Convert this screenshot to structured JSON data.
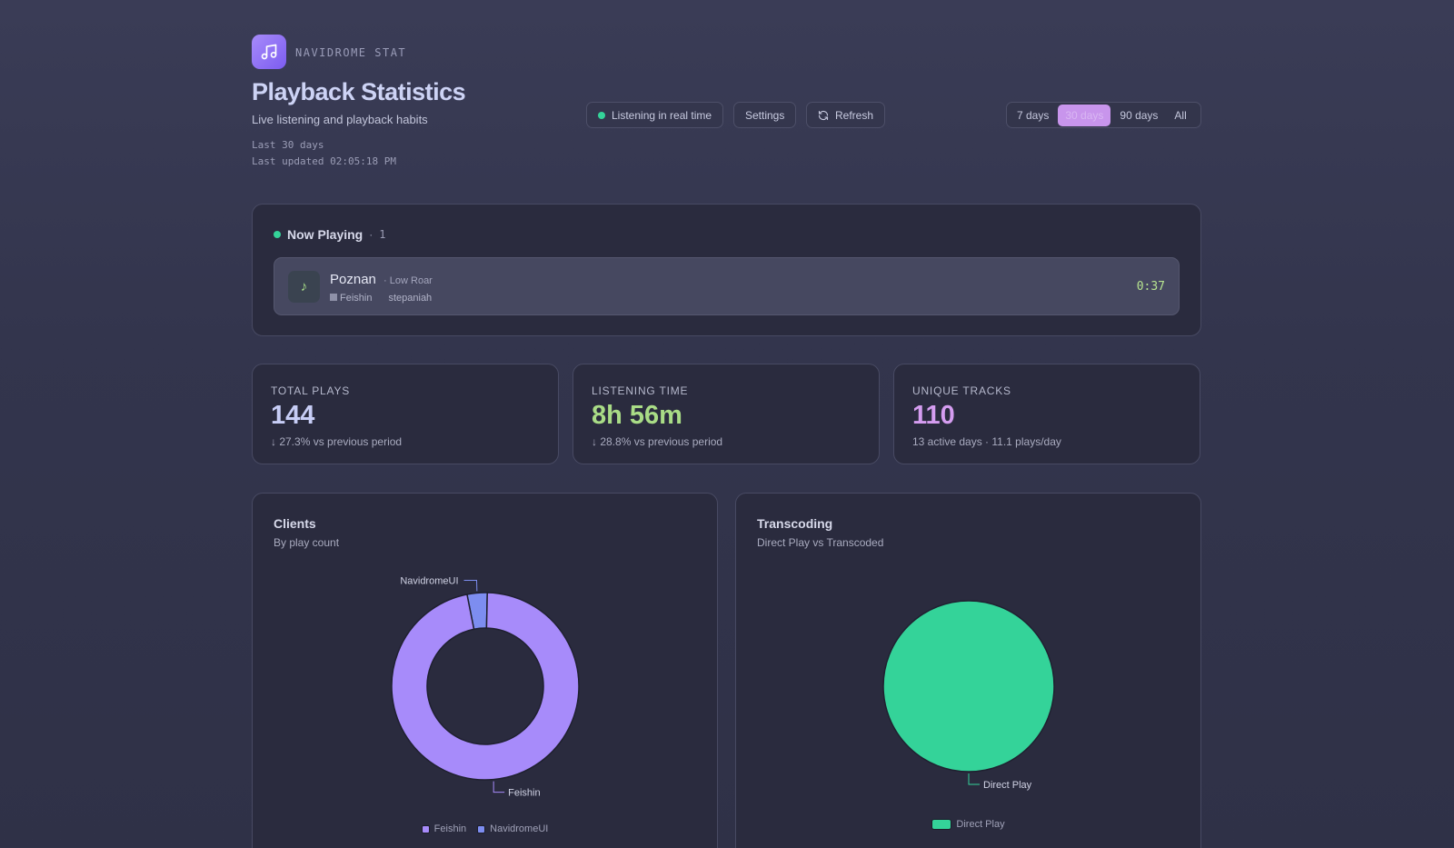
{
  "header": {
    "app_name": "NAVIDROME STAT",
    "title": "Playback Statistics",
    "subtitle": "Live listening and playback habits",
    "range_label": "Last 30 days",
    "last_updated": "Last updated 02:05:18 PM"
  },
  "toolbar": {
    "live_label": "Listening in real time",
    "settings_label": "Settings",
    "refresh_label": "Refresh"
  },
  "range": {
    "options": [
      "7 days",
      "30 days",
      "90 days",
      "All"
    ],
    "selected": "30 days"
  },
  "now_playing": {
    "heading": "Now Playing",
    "count": "1",
    "track": {
      "title": "Poznan",
      "artist": "· Low Roar",
      "client": "Feishin",
      "user": "stepaniah",
      "time": "0:37"
    }
  },
  "stats": {
    "total_plays": {
      "label": "TOTAL PLAYS",
      "value": "144",
      "note": "↓ 27.3% vs previous period",
      "color": "#c7cdf6"
    },
    "listening_time": {
      "label": "LISTENING TIME",
      "value": "8h 56m",
      "note": "↓ 28.8% vs previous period",
      "color": "#a9dc86"
    },
    "unique_tracks": {
      "label": "UNIQUE TRACKS",
      "value": "110",
      "note": "13 active days · 11.1 plays/day",
      "color": "#d59df0"
    }
  },
  "clients_chart": {
    "title": "Clients",
    "subtitle": "By play count",
    "legend": [
      "Feishin",
      "NavidromeUI"
    ]
  },
  "transcoding_chart": {
    "title": "Transcoding",
    "subtitle": "Direct Play vs Transcoded",
    "legend": [
      "Direct Play"
    ]
  },
  "chart_data": [
    {
      "type": "pie",
      "variant": "donut",
      "title": "Clients",
      "subtitle": "By play count",
      "categories": [
        "Feishin",
        "NavidromeUI"
      ],
      "values": [
        139,
        5
      ],
      "colors": [
        "#a78bfa",
        "#7d8df0"
      ],
      "legend": "bottom"
    },
    {
      "type": "pie",
      "title": "Transcoding",
      "subtitle": "Direct Play vs Transcoded",
      "categories": [
        "Direct Play"
      ],
      "values": [
        144
      ],
      "colors": [
        "#34d399"
      ],
      "legend": "bottom"
    }
  ]
}
